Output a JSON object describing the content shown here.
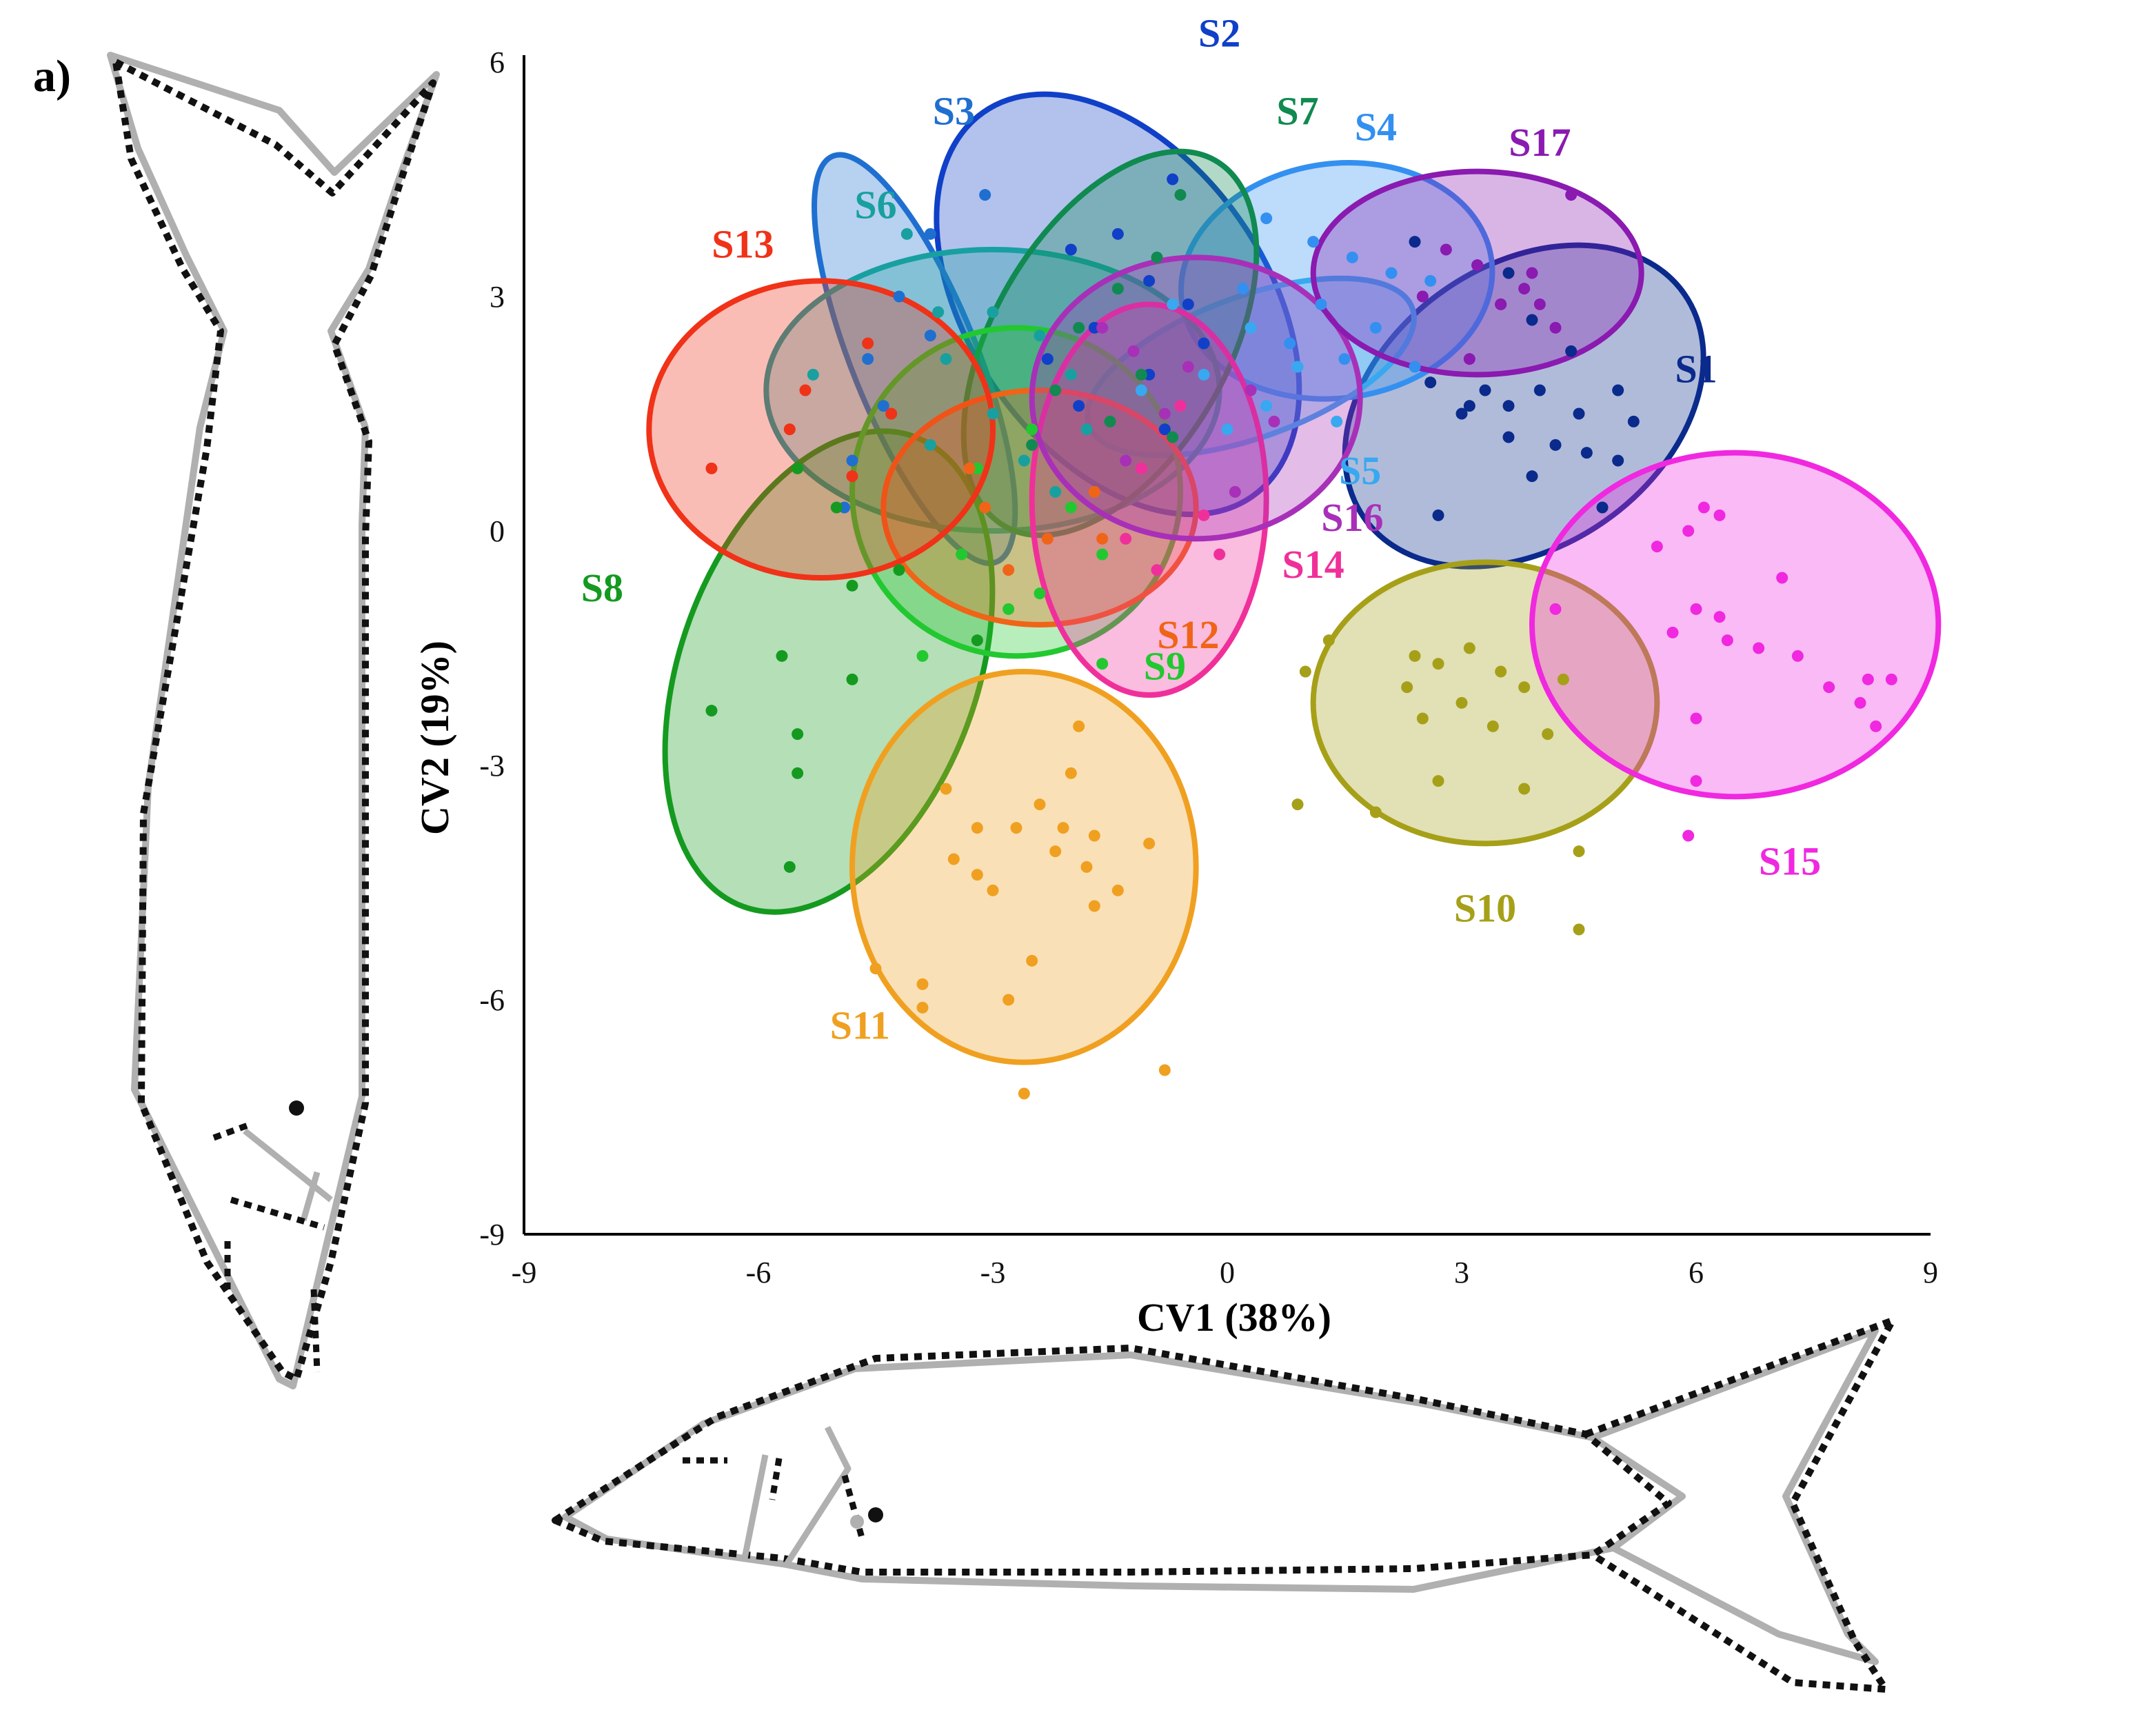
{
  "panel_label": "a)",
  "colors": {
    "outline_mean": "#b0b0b0",
    "outline_deformed": "#111111"
  },
  "chart_data": {
    "type": "scatter",
    "title": "",
    "xlabel": "CV1 (38%)",
    "ylabel": "CV2 (19%)",
    "xlim": [
      -9,
      9
    ],
    "ylim": [
      -9,
      6
    ],
    "xticks": [
      -9,
      -6,
      -3,
      0,
      3,
      6,
      9
    ],
    "yticks": [
      -9,
      -6,
      -3,
      0,
      3,
      6
    ],
    "grid": false,
    "legend": "inline labels next to ellipses",
    "series": [
      {
        "name": "S1",
        "color": "#0a2a8c",
        "ellipse": {
          "cx": 3.8,
          "cy": 1.6,
          "rx": 2.5,
          "ry": 1.8,
          "angle": -35
        },
        "points": [
          [
            2.4,
            3.7
          ],
          [
            3.2,
            3.4
          ],
          [
            3.6,
            3.3
          ],
          [
            3.5,
            2.9
          ],
          [
            3.9,
            2.7
          ],
          [
            4.4,
            2.3
          ],
          [
            2.6,
            1.9
          ],
          [
            3.3,
            1.8
          ],
          [
            3.6,
            1.6
          ],
          [
            4.0,
            1.8
          ],
          [
            4.5,
            1.5
          ],
          [
            5.0,
            1.8
          ],
          [
            5.2,
            1.4
          ],
          [
            3.0,
            1.5
          ],
          [
            3.6,
            1.2
          ],
          [
            3.9,
            0.7
          ],
          [
            4.2,
            1.1
          ],
          [
            4.6,
            1.0
          ],
          [
            5.0,
            0.9
          ],
          [
            2.7,
            0.2
          ],
          [
            3.1,
            1.6
          ],
          [
            4.8,
            0.3
          ]
        ]
      },
      {
        "name": "S2",
        "color": "#1040c8",
        "ellipse": {
          "cx": -1.4,
          "cy": 2.9,
          "rx": 1.9,
          "ry": 3.0,
          "angle": -35
        },
        "points": [
          [
            -0.7,
            4.5
          ],
          [
            -1.4,
            3.8
          ],
          [
            -2.0,
            3.6
          ],
          [
            -1.0,
            3.2
          ],
          [
            -0.5,
            2.9
          ],
          [
            -1.7,
            2.6
          ],
          [
            -2.3,
            2.2
          ],
          [
            -1.0,
            2.0
          ],
          [
            -0.3,
            2.4
          ],
          [
            -1.9,
            1.6
          ],
          [
            -0.8,
            1.3
          ]
        ]
      },
      {
        "name": "S3",
        "color": "#1f6fd0",
        "ellipse": {
          "cx": -4.0,
          "cy": 2.2,
          "rx": 0.8,
          "ry": 2.8,
          "angle": -22
        },
        "points": [
          [
            -3.1,
            4.3
          ],
          [
            -3.8,
            3.8
          ],
          [
            -4.2,
            3.0
          ],
          [
            -3.8,
            2.5
          ],
          [
            -4.6,
            2.2
          ],
          [
            -4.4,
            1.6
          ],
          [
            -4.8,
            0.9
          ],
          [
            -4.9,
            0.3
          ]
        ]
      },
      {
        "name": "S4",
        "color": "#3390f0",
        "ellipse": {
          "cx": 1.4,
          "cy": 3.2,
          "rx": 2.0,
          "ry": 1.5,
          "angle": -8
        },
        "points": [
          [
            0.5,
            4.0
          ],
          [
            1.1,
            3.7
          ],
          [
            1.6,
            3.5
          ],
          [
            2.1,
            3.3
          ],
          [
            2.6,
            3.2
          ],
          [
            0.2,
            3.1
          ],
          [
            1.2,
            2.9
          ],
          [
            1.9,
            2.6
          ],
          [
            0.8,
            2.4
          ],
          [
            2.4,
            2.1
          ],
          [
            1.5,
            2.2
          ]
        ]
      },
      {
        "name": "S5",
        "color": "#38a8f0",
        "ellipse": {
          "cx": 0.3,
          "cy": 2.1,
          "rx": 2.2,
          "ry": 0.9,
          "angle": -20
        },
        "points": [
          [
            -0.7,
            2.9
          ],
          [
            0.3,
            2.6
          ],
          [
            0.9,
            2.1
          ],
          [
            -0.3,
            2.0
          ],
          [
            0.5,
            1.6
          ],
          [
            -1.1,
            1.8
          ],
          [
            1.4,
            1.4
          ],
          [
            0.0,
            1.3
          ]
        ]
      },
      {
        "name": "S6",
        "color": "#18a0a0",
        "ellipse": {
          "cx": -3.0,
          "cy": 1.8,
          "rx": 2.9,
          "ry": 1.8,
          "angle": 0
        },
        "points": [
          [
            -4.1,
            3.8
          ],
          [
            -3.7,
            2.8
          ],
          [
            -3.0,
            2.8
          ],
          [
            -2.4,
            2.5
          ],
          [
            -3.6,
            2.2
          ],
          [
            -2.0,
            2.0
          ],
          [
            -3.0,
            1.5
          ],
          [
            -1.8,
            1.3
          ],
          [
            -2.6,
            0.9
          ],
          [
            -3.8,
            1.1
          ],
          [
            -5.3,
            2.0
          ],
          [
            -2.2,
            0.5
          ]
        ]
      },
      {
        "name": "S7",
        "color": "#108a50",
        "ellipse": {
          "cx": -1.5,
          "cy": 2.4,
          "rx": 1.5,
          "ry": 2.7,
          "angle": 30
        },
        "points": [
          [
            -0.6,
            4.3
          ],
          [
            -0.9,
            3.5
          ],
          [
            -1.4,
            3.1
          ],
          [
            -1.9,
            2.6
          ],
          [
            -1.1,
            2.0
          ],
          [
            -2.2,
            1.8
          ],
          [
            -1.5,
            1.4
          ],
          [
            -2.5,
            1.1
          ],
          [
            -0.7,
            1.2
          ]
        ]
      },
      {
        "name": "S8",
        "color": "#159a20",
        "ellipse": {
          "cx": -5.1,
          "cy": -1.8,
          "rx": 1.9,
          "ry": 3.2,
          "angle": 20
        },
        "points": [
          [
            -5.5,
            0.8
          ],
          [
            -5.0,
            0.3
          ],
          [
            -4.8,
            -0.7
          ],
          [
            -5.7,
            -1.6
          ],
          [
            -4.8,
            -1.9
          ],
          [
            -6.6,
            -2.3
          ],
          [
            -5.5,
            -2.6
          ],
          [
            -5.5,
            -3.1
          ],
          [
            -5.6,
            -4.3
          ],
          [
            -4.2,
            -0.5
          ],
          [
            -3.2,
            -1.4
          ]
        ]
      },
      {
        "name": "S9",
        "color": "#22c830",
        "ellipse": {
          "cx": -2.7,
          "cy": 0.5,
          "rx": 2.1,
          "ry": 2.1,
          "angle": 0
        },
        "points": [
          [
            -2.5,
            1.3
          ],
          [
            -3.2,
            0.8
          ],
          [
            -2.0,
            0.3
          ],
          [
            -1.6,
            -0.3
          ],
          [
            -3.4,
            -0.3
          ],
          [
            -2.4,
            -0.8
          ],
          [
            -3.9,
            -1.6
          ],
          [
            -1.6,
            -1.7
          ],
          [
            -2.8,
            -1.0
          ]
        ]
      },
      {
        "name": "S10",
        "color": "#a6a018",
        "ellipse": {
          "cx": 3.3,
          "cy": -2.2,
          "rx": 2.2,
          "ry": 1.8,
          "angle": 0
        },
        "points": [
          [
            1.3,
            -1.4
          ],
          [
            2.4,
            -1.6
          ],
          [
            2.7,
            -1.7
          ],
          [
            3.1,
            -1.5
          ],
          [
            3.5,
            -1.8
          ],
          [
            2.3,
            -2.0
          ],
          [
            3.0,
            -2.2
          ],
          [
            3.8,
            -2.0
          ],
          [
            4.3,
            -1.9
          ],
          [
            2.5,
            -2.4
          ],
          [
            3.4,
            -2.5
          ],
          [
            1.0,
            -1.8
          ],
          [
            2.7,
            -3.2
          ],
          [
            1.9,
            -3.6
          ],
          [
            3.8,
            -3.3
          ],
          [
            0.9,
            -3.5
          ],
          [
            4.1,
            -2.6
          ],
          [
            4.5,
            -4.1
          ],
          [
            4.5,
            -5.1
          ]
        ]
      },
      {
        "name": "S11",
        "color": "#f0a020",
        "ellipse": {
          "cx": -2.6,
          "cy": -4.3,
          "rx": 2.2,
          "ry": 2.5,
          "angle": 0
        },
        "points": [
          [
            -1.9,
            -2.5
          ],
          [
            -2.0,
            -3.1
          ],
          [
            -3.6,
            -3.3
          ],
          [
            -2.4,
            -3.5
          ],
          [
            -3.2,
            -3.8
          ],
          [
            -2.7,
            -3.8
          ],
          [
            -2.1,
            -3.8
          ],
          [
            -1.7,
            -3.9
          ],
          [
            -1.0,
            -4.0
          ],
          [
            -3.5,
            -4.2
          ],
          [
            -2.2,
            -4.1
          ],
          [
            -3.2,
            -4.4
          ],
          [
            -1.8,
            -4.3
          ],
          [
            -3.0,
            -4.6
          ],
          [
            -1.4,
            -4.6
          ],
          [
            -1.7,
            -4.8
          ],
          [
            -2.5,
            -5.5
          ],
          [
            -2.8,
            -6.0
          ],
          [
            -3.9,
            -5.8
          ],
          [
            -4.5,
            -5.6
          ],
          [
            -3.9,
            -6.1
          ],
          [
            -0.8,
            -6.9
          ],
          [
            -2.6,
            -7.2
          ]
        ]
      },
      {
        "name": "S12",
        "color": "#f06418",
        "ellipse": {
          "cx": -2.4,
          "cy": 0.3,
          "rx": 2.0,
          "ry": 1.5,
          "angle": 0
        },
        "points": [
          [
            -3.1,
            0.3
          ],
          [
            -2.3,
            -0.1
          ],
          [
            -1.6,
            -0.1
          ],
          [
            -2.8,
            -0.5
          ],
          [
            -1.7,
            0.5
          ],
          [
            -3.3,
            0.8
          ]
        ]
      },
      {
        "name": "S13",
        "color": "#f03218",
        "ellipse": {
          "cx": -5.2,
          "cy": 1.3,
          "rx": 2.2,
          "ry": 1.9,
          "angle": 0
        },
        "points": [
          [
            -5.6,
            1.3
          ],
          [
            -6.6,
            0.8
          ],
          [
            -4.6,
            2.4
          ],
          [
            -4.3,
            1.5
          ],
          [
            -5.4,
            1.8
          ],
          [
            -4.8,
            0.7
          ]
        ]
      },
      {
        "name": "S14",
        "color": "#f0309a",
        "ellipse": {
          "cx": -1.0,
          "cy": 0.4,
          "rx": 1.5,
          "ry": 2.5,
          "angle": 0
        },
        "points": [
          [
            -0.6,
            1.6
          ],
          [
            -1.1,
            0.8
          ],
          [
            -0.3,
            0.2
          ],
          [
            -0.9,
            -0.5
          ],
          [
            -1.3,
            -0.1
          ],
          [
            -0.1,
            -0.3
          ]
        ]
      },
      {
        "name": "S15",
        "color": "#f028e0",
        "ellipse": {
          "cx": 6.5,
          "cy": -1.2,
          "rx": 2.6,
          "ry": 2.2,
          "angle": 0
        },
        "points": [
          [
            6.1,
            0.3
          ],
          [
            6.3,
            0.2
          ],
          [
            5.9,
            0.0
          ],
          [
            5.5,
            -0.2
          ],
          [
            7.1,
            -0.6
          ],
          [
            6.0,
            -1.0
          ],
          [
            6.3,
            -1.1
          ],
          [
            5.7,
            -1.3
          ],
          [
            6.4,
            -1.4
          ],
          [
            6.8,
            -1.5
          ],
          [
            7.3,
            -1.6
          ],
          [
            8.2,
            -1.9
          ],
          [
            8.5,
            -1.9
          ],
          [
            7.7,
            -2.0
          ],
          [
            8.1,
            -2.2
          ],
          [
            6.0,
            -2.4
          ],
          [
            8.3,
            -2.5
          ],
          [
            6.0,
            -3.2
          ],
          [
            5.9,
            -3.9
          ],
          [
            4.2,
            -1.0
          ]
        ]
      },
      {
        "name": "S16",
        "color": "#a830b8",
        "ellipse": {
          "cx": -0.4,
          "cy": 1.7,
          "rx": 2.1,
          "ry": 1.8,
          "angle": 0
        },
        "points": [
          [
            -1.6,
            2.6
          ],
          [
            -1.2,
            2.3
          ],
          [
            -0.5,
            2.1
          ],
          [
            0.3,
            1.8
          ],
          [
            -0.8,
            1.5
          ],
          [
            0.6,
            1.4
          ],
          [
            -1.3,
            0.9
          ],
          [
            0.1,
            0.5
          ]
        ]
      },
      {
        "name": "S17",
        "color": "#8a1ab0",
        "ellipse": {
          "cx": 3.2,
          "cy": 3.3,
          "rx": 2.1,
          "ry": 1.3,
          "angle": 0
        },
        "points": [
          [
            4.4,
            4.3
          ],
          [
            2.8,
            3.6
          ],
          [
            3.2,
            3.4
          ],
          [
            3.9,
            3.3
          ],
          [
            3.8,
            3.1
          ],
          [
            3.5,
            2.9
          ],
          [
            4.0,
            2.9
          ],
          [
            2.5,
            3.0
          ],
          [
            4.2,
            2.6
          ],
          [
            3.1,
            2.2
          ]
        ]
      }
    ],
    "label_positions": {
      "S1": [
        6.0,
        1.9
      ],
      "S2": [
        -0.1,
        6.2
      ],
      "S3": [
        -3.5,
        5.2
      ],
      "S4": [
        1.9,
        5.0
      ],
      "S5": [
        1.7,
        0.6
      ],
      "S6": [
        -4.5,
        4.0
      ],
      "S7": [
        0.9,
        5.2
      ],
      "S8": [
        -8.0,
        -0.9
      ],
      "S9": [
        -0.8,
        -1.9
      ],
      "S10": [
        3.3,
        -5.0
      ],
      "S11": [
        -4.7,
        -6.5
      ],
      "S12": [
        -0.5,
        -1.5
      ],
      "S13": [
        -6.2,
        3.5
      ],
      "S14": [
        1.1,
        -0.6
      ],
      "S15": [
        7.2,
        -4.4
      ],
      "S16": [
        1.6,
        0.0
      ],
      "S17": [
        4.0,
        4.8
      ]
    }
  }
}
